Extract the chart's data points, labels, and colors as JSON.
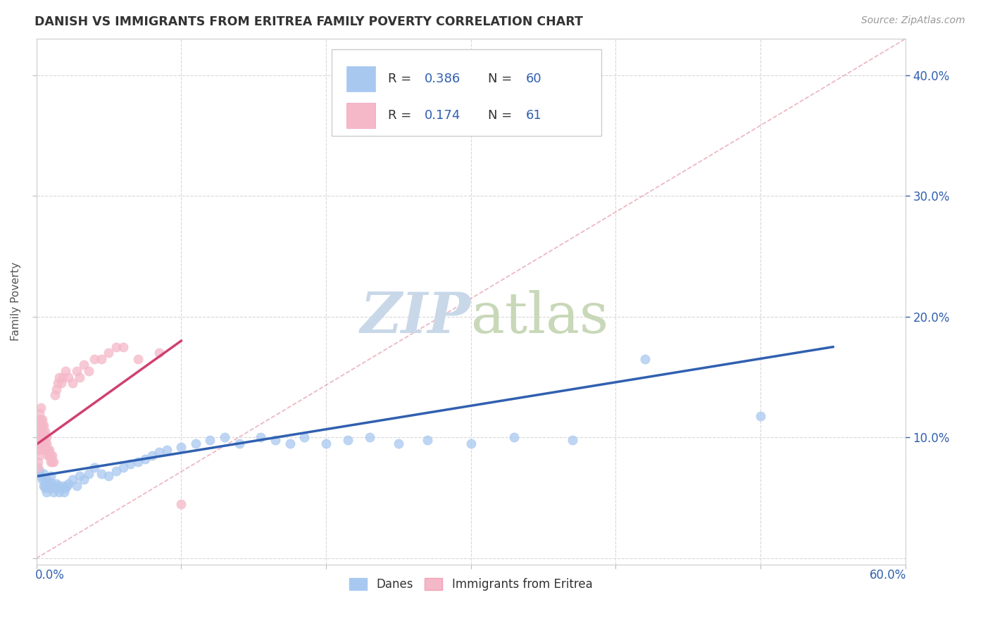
{
  "title": "DANISH VS IMMIGRANTS FROM ERITREA FAMILY POVERTY CORRELATION CHART",
  "source": "Source: ZipAtlas.com",
  "ylabel": "Family Poverty",
  "right_yticks": [
    0.1,
    0.2,
    0.3,
    0.4
  ],
  "right_yticklabels": [
    "10.0%",
    "20.0%",
    "30.0%",
    "40.0%"
  ],
  "xlim": [
    0.0,
    0.6
  ],
  "ylim": [
    -0.005,
    0.43
  ],
  "color_danes": "#a8c8f0",
  "color_eritrea": "#f5b8c8",
  "color_line_danes": "#3060b0",
  "color_line_eritrea": "#d04070",
  "color_refline": "#e8a0b0",
  "legend_label1": "Danes",
  "legend_label2": "Immigrants from Eritrea",
  "danes_x": [
    0.002,
    0.003,
    0.004,
    0.005,
    0.005,
    0.006,
    0.006,
    0.007,
    0.007,
    0.008,
    0.009,
    0.01,
    0.01,
    0.011,
    0.012,
    0.013,
    0.014,
    0.015,
    0.016,
    0.017,
    0.018,
    0.019,
    0.02,
    0.021,
    0.022,
    0.025,
    0.028,
    0.03,
    0.033,
    0.036,
    0.04,
    0.045,
    0.05,
    0.055,
    0.06,
    0.065,
    0.07,
    0.075,
    0.08,
    0.085,
    0.09,
    0.1,
    0.11,
    0.12,
    0.13,
    0.14,
    0.155,
    0.165,
    0.175,
    0.185,
    0.2,
    0.215,
    0.23,
    0.25,
    0.27,
    0.3,
    0.33,
    0.37,
    0.42,
    0.5
  ],
  "danes_y": [
    0.072,
    0.068,
    0.065,
    0.07,
    0.06,
    0.058,
    0.062,
    0.055,
    0.065,
    0.06,
    0.058,
    0.063,
    0.068,
    0.06,
    0.055,
    0.058,
    0.062,
    0.06,
    0.055,
    0.058,
    0.06,
    0.055,
    0.058,
    0.06,
    0.062,
    0.065,
    0.06,
    0.068,
    0.065,
    0.07,
    0.075,
    0.07,
    0.068,
    0.072,
    0.075,
    0.078,
    0.08,
    0.082,
    0.085,
    0.088,
    0.09,
    0.092,
    0.095,
    0.098,
    0.1,
    0.095,
    0.1,
    0.098,
    0.095,
    0.1,
    0.095,
    0.098,
    0.1,
    0.095,
    0.098,
    0.095,
    0.1,
    0.098,
    0.165,
    0.118
  ],
  "eritrea_x": [
    0.001,
    0.001,
    0.001,
    0.001,
    0.002,
    0.002,
    0.002,
    0.002,
    0.002,
    0.002,
    0.002,
    0.003,
    0.003,
    0.003,
    0.003,
    0.003,
    0.003,
    0.004,
    0.004,
    0.004,
    0.004,
    0.005,
    0.005,
    0.005,
    0.005,
    0.006,
    0.006,
    0.006,
    0.007,
    0.007,
    0.007,
    0.008,
    0.008,
    0.009,
    0.009,
    0.01,
    0.01,
    0.011,
    0.011,
    0.012,
    0.013,
    0.014,
    0.015,
    0.016,
    0.017,
    0.018,
    0.02,
    0.022,
    0.025,
    0.028,
    0.03,
    0.033,
    0.036,
    0.04,
    0.045,
    0.05,
    0.055,
    0.06,
    0.07,
    0.085,
    0.1
  ],
  "eritrea_y": [
    0.075,
    0.08,
    0.09,
    0.095,
    0.085,
    0.09,
    0.1,
    0.105,
    0.11,
    0.115,
    0.12,
    0.095,
    0.1,
    0.105,
    0.11,
    0.115,
    0.125,
    0.095,
    0.1,
    0.11,
    0.115,
    0.095,
    0.1,
    0.105,
    0.11,
    0.09,
    0.095,
    0.105,
    0.09,
    0.095,
    0.1,
    0.085,
    0.09,
    0.085,
    0.09,
    0.08,
    0.085,
    0.08,
    0.085,
    0.08,
    0.135,
    0.14,
    0.145,
    0.15,
    0.145,
    0.15,
    0.155,
    0.15,
    0.145,
    0.155,
    0.15,
    0.16,
    0.155,
    0.165,
    0.165,
    0.17,
    0.175,
    0.175,
    0.165,
    0.17,
    0.045
  ],
  "danes_trendline_x": [
    0.001,
    0.55
  ],
  "danes_trendline_y": [
    0.068,
    0.175
  ],
  "eritrea_trendline_x": [
    0.001,
    0.1
  ],
  "eritrea_trendline_y": [
    0.095,
    0.18
  ],
  "refline_x": [
    0.0,
    0.6
  ],
  "refline_y": [
    0.0,
    0.43
  ]
}
